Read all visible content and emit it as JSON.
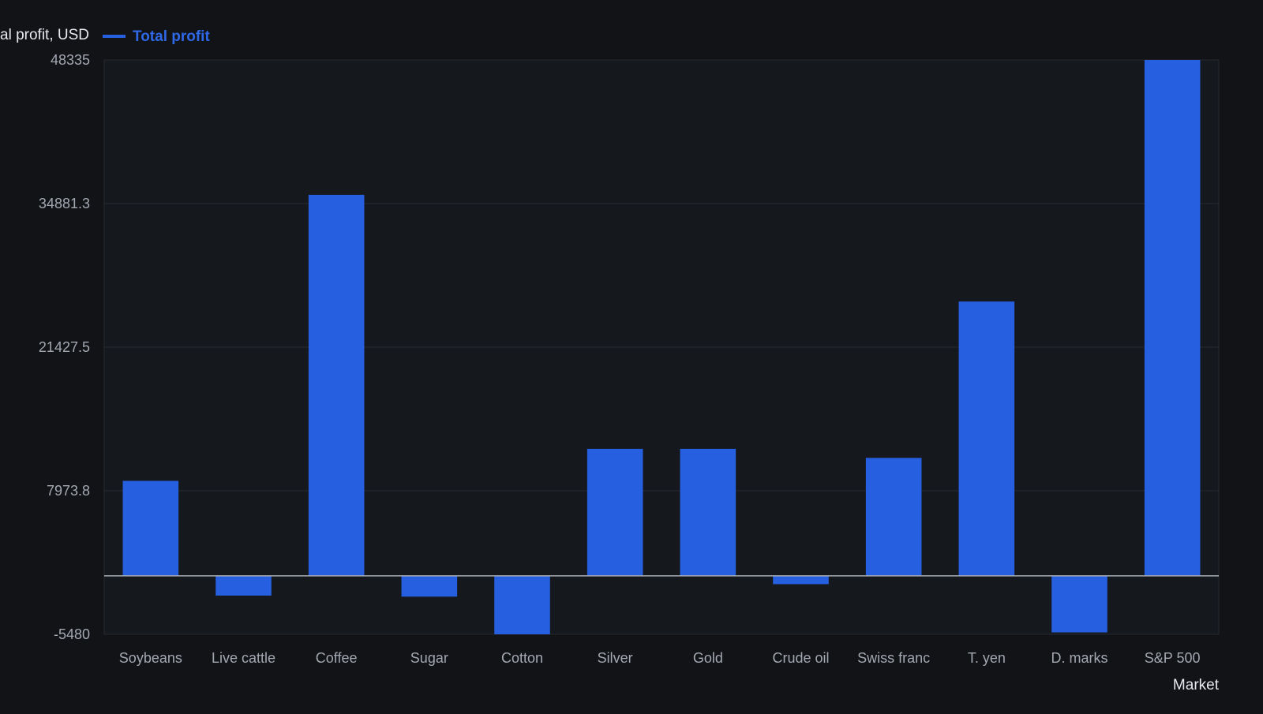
{
  "colors": {
    "background": "#111317",
    "plot_background": "#15181d",
    "bar": "#265fe0",
    "grid": "#262a31",
    "zero_line": "#a9adb5",
    "legend_text": "#2f68e6"
  },
  "chart_data": {
    "type": "bar",
    "title": "",
    "xlabel": "Market",
    "ylabel": "tal profit, USD",
    "categories": [
      "Soybeans",
      "Live cattle",
      "Coffee",
      "Sugar",
      "Cotton",
      "Silver",
      "Gold",
      "Crude oil",
      "Swiss franc",
      "T. yen",
      "D. marks",
      "S&P 500"
    ],
    "series": [
      {
        "name": "Total profit",
        "values": [
          8900,
          -1850,
          35700,
          -1950,
          -5480,
          11900,
          11900,
          -780,
          11050,
          25700,
          -5300,
          48335
        ]
      }
    ],
    "ylim": [
      -5480,
      48335
    ],
    "yticks": [
      "48335",
      "34881.3",
      "21427.5",
      "7973.8",
      "-5480"
    ],
    "ytick_values": [
      48335,
      34881.3,
      21427.5,
      7973.8,
      -5480
    ],
    "grid": true,
    "legend_position": "top-left"
  }
}
